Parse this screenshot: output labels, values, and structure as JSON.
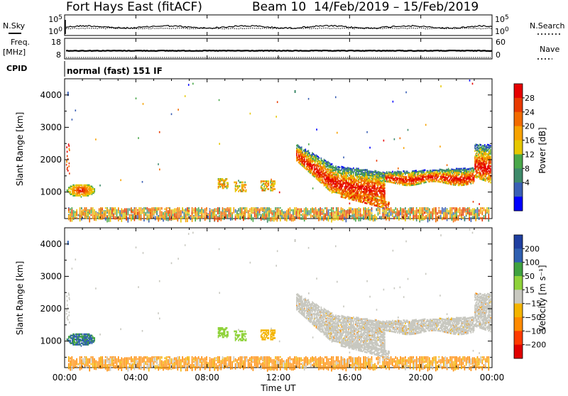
{
  "header": {
    "station": "Fort Hays East (fitACF)",
    "beam": "Beam 10",
    "date_range": "14/Feb/2019 – 15/Feb/2019"
  },
  "side_labels": {
    "nsky": "N.Sky",
    "freq_line1": "Freq.",
    "freq_line2": "[MHz]",
    "cpid": "CPID",
    "nsearch": "N.Search",
    "nave": "Nave"
  },
  "cpid_text": "normal (fast) 151 IF",
  "colors": {
    "power": [
      "#0000ff",
      "#3a5fb5",
      "#3e8a6a",
      "#4aa84a",
      "#e6c700",
      "#f7a200",
      "#f26b00",
      "#e83a00",
      "#e60000"
    ],
    "velocity": [
      "#e00000",
      "#ff3a00",
      "#ff8a00",
      "#f4b400",
      "#c8c8c0",
      "#8fd23a",
      "#3fa23f",
      "#2f5fb0",
      "#1f3fa0"
    ]
  },
  "chart_data": [
    {
      "type": "line",
      "name": "noise-panel",
      "ylabels_left": [
        "10^5",
        "10^0"
      ],
      "ylabels_right": [
        "10^5",
        "10^0"
      ]
    },
    {
      "type": "line",
      "name": "frequency-panel",
      "ylim": [
        8,
        18
      ],
      "yticks_left": [
        "18",
        "8"
      ],
      "yticks_right": [
        "60",
        "0"
      ]
    },
    {
      "type": "heatmap",
      "name": "power-panel",
      "ylabel": "Slant Range [km]",
      "ylim": [
        180,
        4500
      ],
      "yticks": [
        1000,
        2000,
        3000,
        4000
      ],
      "colorbar_label": "Power [dB]",
      "colorbar_ticks": [
        "28",
        "24",
        "20",
        "16",
        "12",
        "8",
        "4"
      ]
    },
    {
      "type": "heatmap",
      "name": "velocity-panel",
      "ylabel": "Slant Range [km]",
      "ylim": [
        180,
        4500
      ],
      "yticks": [
        1000,
        2000,
        3000,
        4000
      ],
      "colorbar_label": "Velocity [m s⁻¹]",
      "colorbar_ticks": [
        "200",
        "100",
        "50",
        "15",
        "−15",
        "−50",
        "−100",
        "−200"
      ],
      "xlabel": "Time UT",
      "xticks": [
        "00:00",
        "04:00",
        "08:00",
        "12:00",
        "16:00",
        "20:00",
        "00:00"
      ]
    }
  ]
}
